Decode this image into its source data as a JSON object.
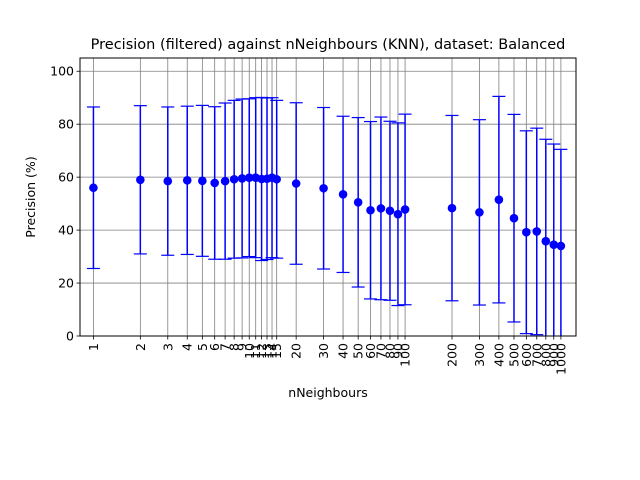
{
  "chart_data": {
    "type": "scatter",
    "title": "Precision (filtered) against nNeighbours (KNN), dataset: Balanced",
    "xlabel": "nNeighbours",
    "ylabel": "Precision (%)",
    "x_scale": "log",
    "xlim": [
      0.82,
      1250
    ],
    "ylim": [
      0,
      105
    ],
    "y_ticks": [
      0,
      20,
      40,
      60,
      80,
      100
    ],
    "x_tick_labels": [
      "1",
      "2",
      "3",
      "4",
      "5",
      "6",
      "7",
      "8",
      "9",
      "10",
      "11",
      "12",
      "13",
      "14",
      "15",
      "20",
      "30",
      "40",
      "50",
      "60",
      "70",
      "80",
      "90",
      "100",
      "200",
      "300",
      "400",
      "500",
      "600",
      "700",
      "800",
      "900",
      "1000"
    ],
    "grid": true,
    "color": "#0000ff",
    "series": [
      {
        "x": [
          1,
          2,
          3,
          4,
          5,
          6,
          7,
          8,
          9,
          10,
          11,
          12,
          13,
          14,
          15,
          20,
          30,
          40,
          50,
          60,
          70,
          80,
          90,
          100,
          200,
          300,
          400,
          500,
          600,
          700,
          800,
          900,
          1000
        ],
        "y": [
          56.0,
          59.0,
          58.5,
          58.8,
          58.6,
          57.8,
          58.5,
          59.2,
          59.5,
          59.8,
          59.8,
          59.3,
          59.4,
          59.8,
          59.2,
          57.6,
          55.8,
          53.5,
          50.5,
          47.5,
          48.2,
          47.3,
          46.0,
          47.8,
          48.3,
          46.7,
          51.5,
          44.5,
          39.2,
          39.5,
          35.8,
          34.5,
          34.0
        ],
        "err": [
          30.5,
          28.0,
          28.0,
          28.0,
          28.5,
          28.8,
          29.5,
          29.8,
          30.0,
          29.8,
          30.2,
          30.8,
          30.5,
          30.2,
          29.8,
          30.5,
          30.5,
          29.5,
          32.0,
          33.5,
          34.5,
          33.8,
          34.5,
          36.0,
          35.0,
          35.0,
          39.0,
          39.2,
          38.3,
          39.0,
          38.5,
          38.0,
          36.5
        ]
      }
    ]
  }
}
